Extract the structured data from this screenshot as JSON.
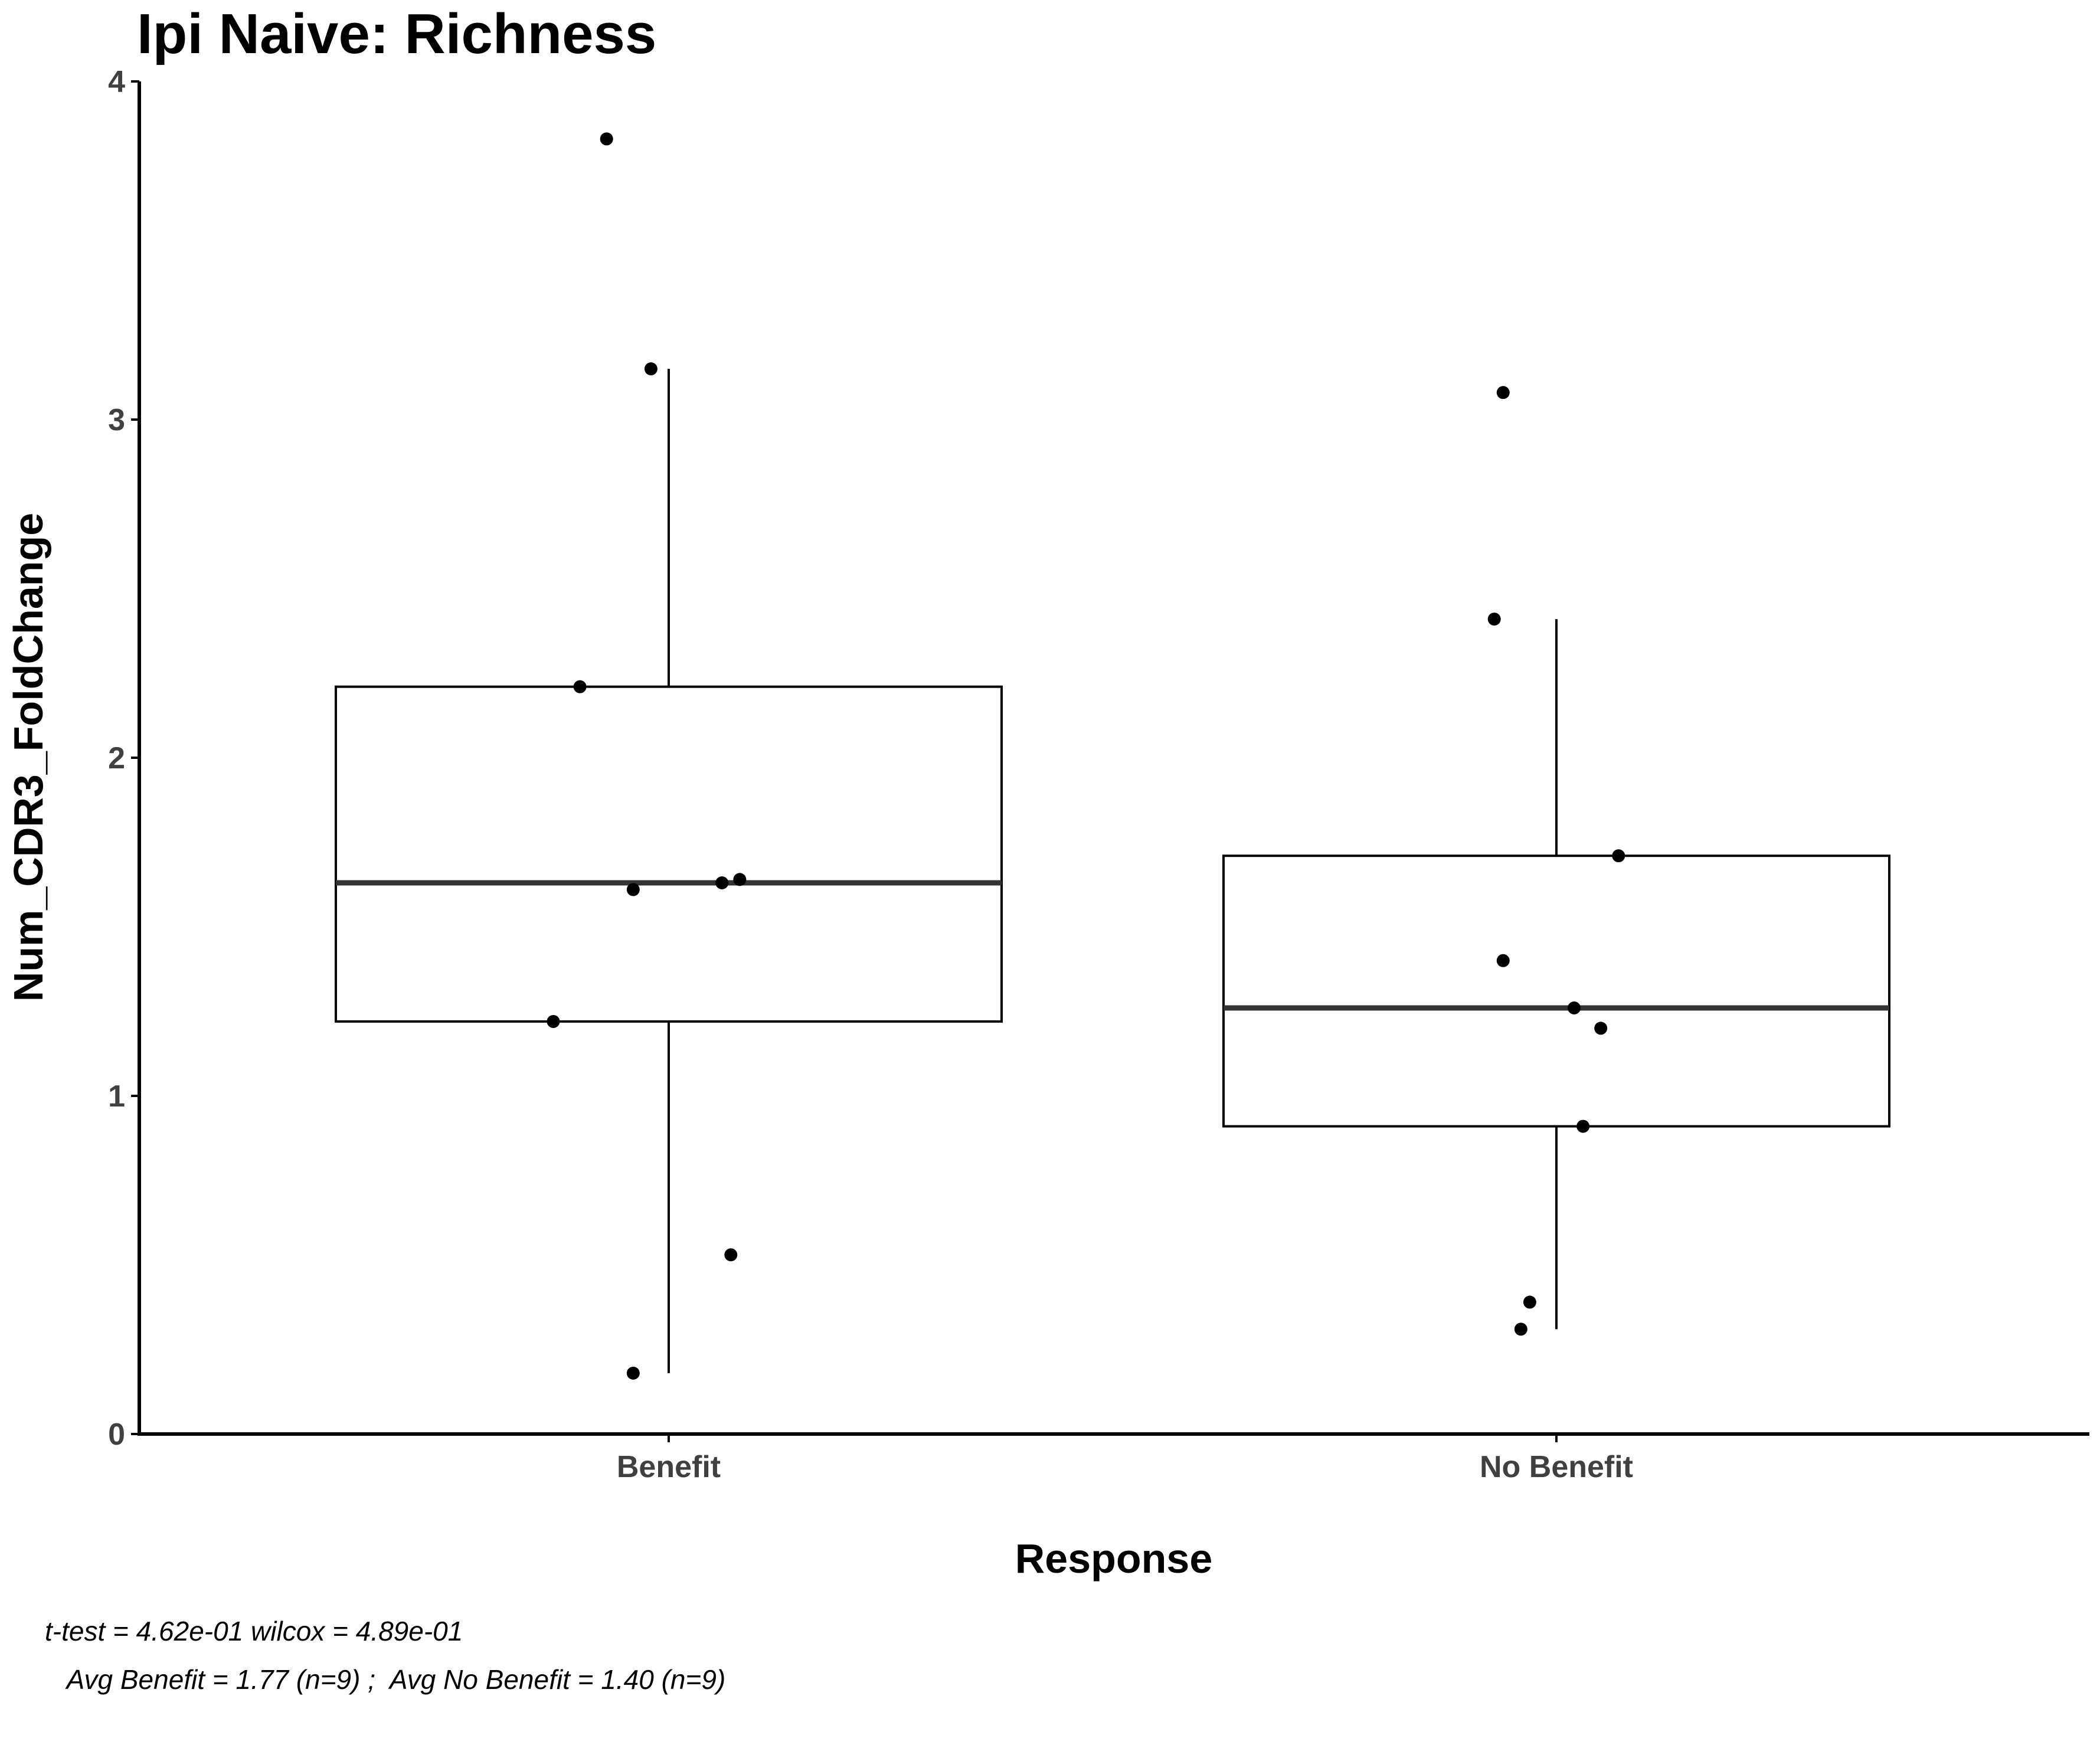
{
  "chart_data": {
    "type": "box",
    "title": "Ipi Naive: Richness",
    "xlabel": "Response",
    "ylabel": "Num_CDR3_FoldChange",
    "ylim": [
      0,
      4
    ],
    "yticks": [
      "0",
      "1",
      "2",
      "3",
      "4"
    ],
    "grid": false,
    "categories": [
      "Benefit",
      "No Benefit"
    ],
    "boxes": [
      {
        "category": "Benefit",
        "whisker_low": 0.18,
        "q1": 1.22,
        "median": 1.63,
        "q3": 2.21,
        "whisker_high": 3.15
      },
      {
        "category": "No Benefit",
        "whisker_low": 0.31,
        "q1": 0.91,
        "median": 1.26,
        "q3": 1.71,
        "whisker_high": 2.41
      }
    ],
    "points": [
      {
        "category": "Benefit",
        "y": 3.83,
        "jitter": -0.07
      },
      {
        "category": "Benefit",
        "y": 3.15,
        "jitter": -0.02
      },
      {
        "category": "Benefit",
        "y": 2.21,
        "jitter": -0.1
      },
      {
        "category": "Benefit",
        "y": 1.61,
        "jitter": -0.04
      },
      {
        "category": "Benefit",
        "y": 1.63,
        "jitter": 0.06
      },
      {
        "category": "Benefit",
        "y": 1.64,
        "jitter": 0.08
      },
      {
        "category": "Benefit",
        "y": 1.22,
        "jitter": -0.13
      },
      {
        "category": "Benefit",
        "y": 0.53,
        "jitter": 0.07
      },
      {
        "category": "Benefit",
        "y": 0.18,
        "jitter": -0.04
      },
      {
        "category": "No Benefit",
        "y": 3.08,
        "jitter": -0.06
      },
      {
        "category": "No Benefit",
        "y": 2.41,
        "jitter": -0.07
      },
      {
        "category": "No Benefit",
        "y": 1.71,
        "jitter": 0.07
      },
      {
        "category": "No Benefit",
        "y": 1.4,
        "jitter": -0.06
      },
      {
        "category": "No Benefit",
        "y": 1.26,
        "jitter": 0.02
      },
      {
        "category": "No Benefit",
        "y": 1.2,
        "jitter": 0.05
      },
      {
        "category": "No Benefit",
        "y": 0.91,
        "jitter": 0.03
      },
      {
        "category": "No Benefit",
        "y": 0.39,
        "jitter": -0.03
      },
      {
        "category": "No Benefit",
        "y": 0.31,
        "jitter": -0.04
      }
    ],
    "caption_line1": "t-test = 4.62e-01 wilcox = 4.89e-01",
    "caption_line2": "   Avg Benefit = 1.77 (n=9) ;  Avg No Benefit = 1.40 (n=9)"
  },
  "colors": {
    "box_stroke": "#000000",
    "median": "#333333",
    "point": "#000000",
    "axis": "#000000",
    "tick_text": "#404040"
  }
}
